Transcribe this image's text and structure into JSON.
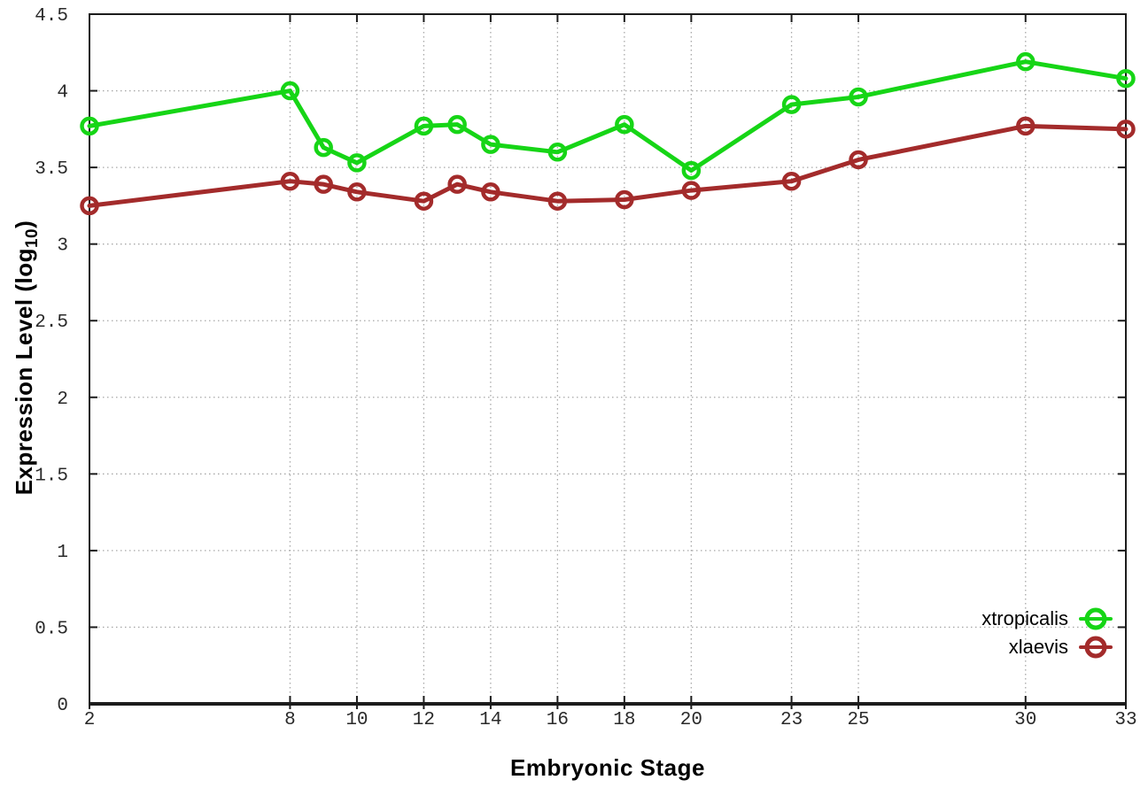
{
  "chart_data": {
    "type": "line",
    "xlabel": "Embryonic Stage",
    "ylabel_prefix": "Expression Level (log",
    "ylabel_sub": "10",
    "ylabel_suffix": ")",
    "x": [
      2,
      8,
      9,
      10,
      12,
      13,
      14,
      16,
      18,
      20,
      23,
      25,
      30,
      33
    ],
    "series": [
      {
        "name": "xtropicalis",
        "color": "#16d516",
        "values": [
          3.77,
          4.0,
          3.63,
          3.53,
          3.77,
          3.78,
          3.65,
          3.6,
          3.78,
          3.48,
          3.91,
          3.96,
          4.19,
          4.08
        ]
      },
      {
        "name": "xlaevis",
        "color": "#a32b2b",
        "values": [
          3.25,
          3.41,
          3.39,
          3.34,
          3.28,
          3.39,
          3.34,
          3.28,
          3.29,
          3.35,
          3.41,
          3.55,
          3.77,
          3.75
        ]
      }
    ],
    "xticks": [
      2,
      8,
      10,
      12,
      14,
      16,
      18,
      20,
      23,
      25,
      30,
      33
    ],
    "yticks": [
      0,
      0.5,
      1,
      1.5,
      2,
      2.5,
      3,
      3.5,
      4,
      4.5
    ],
    "xlim": [
      2,
      33
    ],
    "ylim": [
      0,
      4.5
    ],
    "grid": true,
    "legend_position": "inside-right",
    "style": {
      "background": "#ffffff",
      "axis_color": "#1c1c1c",
      "grid_color": "#a8a8a8",
      "tick_label_color": "#2a2a2a"
    }
  }
}
